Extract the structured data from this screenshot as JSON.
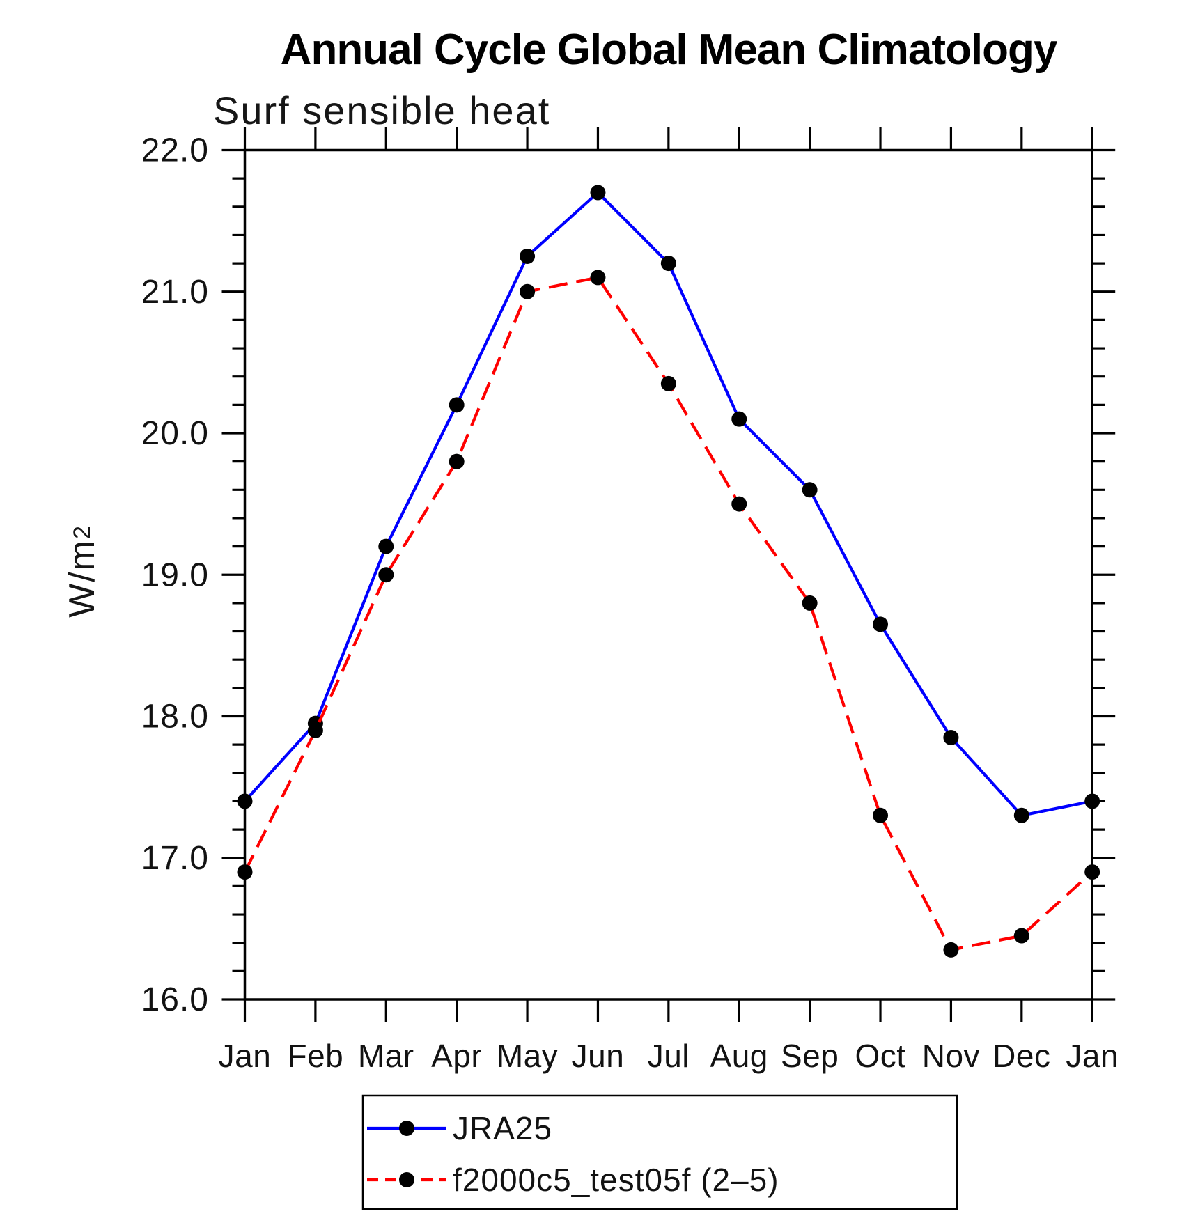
{
  "ui": {
    "ylabel_base": "W/m",
    "ylabel_exp": "2"
  },
  "chart_data": {
    "type": "line",
    "title": "Annual Cycle Global Mean Climatology",
    "subtitle": "Surf sensible heat",
    "ylabel": "W/m²",
    "xlabel": "",
    "categories": [
      "Jan",
      "Feb",
      "Mar",
      "Apr",
      "May",
      "Jun",
      "Jul",
      "Aug",
      "Sep",
      "Oct",
      "Nov",
      "Dec",
      "Jan"
    ],
    "ylim": [
      16.0,
      22.0
    ],
    "ytick_interval": 1.0,
    "yminor_interval": 0.2,
    "ytick_labels": [
      "16.0",
      "17.0",
      "18.0",
      "19.0",
      "20.0",
      "21.0",
      "22.0"
    ],
    "grid": false,
    "background_color": "#ffffff",
    "axis_color": "#000000",
    "marker_color": "#000000",
    "legend_position": "bottom",
    "series": [
      {
        "name": "JRA25",
        "color": "#0000ff",
        "line_style": "solid",
        "marker": "circle",
        "values": [
          17.4,
          17.95,
          19.2,
          20.2,
          21.25,
          21.7,
          21.2,
          20.1,
          19.6,
          18.65,
          17.85,
          17.3,
          17.4
        ]
      },
      {
        "name": "f2000c5_test05f (2–5)",
        "color": "#ff0000",
        "line_style": "dashed",
        "marker": "circle",
        "values": [
          16.9,
          17.9,
          19.0,
          19.8,
          21.0,
          21.1,
          20.35,
          19.5,
          18.8,
          17.3,
          16.35,
          16.45,
          16.9
        ]
      }
    ]
  }
}
